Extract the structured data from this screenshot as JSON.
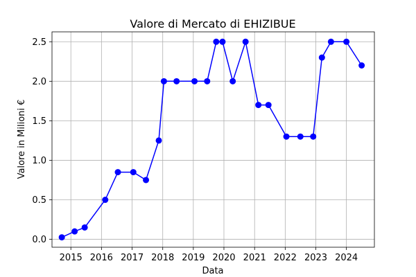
{
  "chart_data": {
    "type": "line",
    "title": "Valore di Mercato di EHIZIBUE",
    "xlabel": "Data",
    "ylabel": "Valore in Milioni €",
    "ylim": [
      -0.1,
      2.625
    ],
    "xlim": [
      "2014-05-21",
      "2024-11-30"
    ],
    "grid": true,
    "color": "#0000ff",
    "x_ticks": [
      "2015",
      "2016",
      "2017",
      "2018",
      "2019",
      "2020",
      "2021",
      "2022",
      "2023",
      "2024"
    ],
    "y_ticks": [
      "0.0",
      "0.5",
      "1.0",
      "1.5",
      "2.0",
      "2.5"
    ],
    "series": [
      {
        "x": [
          "2014-09-15",
          "2015-02-15",
          "2015-06-15",
          "2016-02-15",
          "2016-07-15",
          "2017-01-15",
          "2017-06-15",
          "2017-11-15",
          "2018-01-15",
          "2018-06-15",
          "2019-01-15",
          "2019-06-15",
          "2019-10-01",
          "2019-12-15",
          "2020-04-15",
          "2020-09-15",
          "2021-02-15",
          "2021-06-15",
          "2022-01-15",
          "2022-07-01",
          "2022-12-01",
          "2023-03-15",
          "2023-07-01",
          "2024-01-01",
          "2024-07-01"
        ],
        "y": [
          0.025,
          0.1,
          0.15,
          0.5,
          0.85,
          0.85,
          0.75,
          1.25,
          2.0,
          2.0,
          2.0,
          2.0,
          2.5,
          2.5,
          2.0,
          2.5,
          1.7,
          1.7,
          1.3,
          1.3,
          1.3,
          2.3,
          2.5,
          2.5,
          2.2
        ]
      }
    ]
  }
}
